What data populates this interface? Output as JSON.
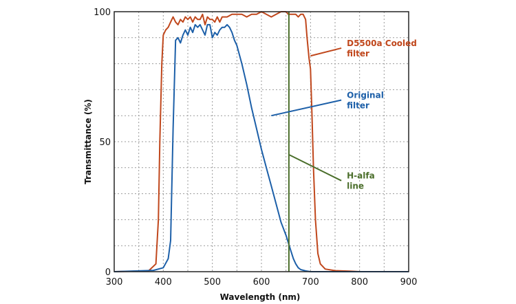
{
  "chart_data": {
    "type": "line",
    "xlabel": "Wavelength (nm)",
    "ylabel": "Transmittance (%)",
    "xlim": [
      300,
      900
    ],
    "ylim": [
      0,
      100
    ],
    "x_ticks": [
      "300",
      "400",
      "500",
      "600",
      "700",
      "800",
      "900"
    ],
    "y_ticks": [
      "0",
      "50",
      "100"
    ],
    "x_grid_step": 50,
    "y_grid_step": 10,
    "grid": true,
    "series": [
      {
        "name": "D5500a Cooled filter",
        "color": "#c0471c",
        "x": [
          300,
          370,
          385,
          390,
          393,
          397,
          400,
          405,
          410,
          415,
          420,
          425,
          430,
          435,
          440,
          445,
          450,
          455,
          460,
          465,
          470,
          475,
          480,
          485,
          490,
          495,
          500,
          505,
          510,
          515,
          520,
          530,
          540,
          550,
          560,
          570,
          580,
          590,
          600,
          610,
          620,
          630,
          640,
          650,
          655,
          660,
          670,
          675,
          680,
          685,
          690,
          693,
          697,
          700,
          703,
          706,
          710,
          715,
          720,
          730,
          750,
          780,
          800,
          900
        ],
        "y": [
          0,
          0.3,
          3,
          20,
          50,
          80,
          91,
          93,
          94,
          96,
          98,
          96,
          95,
          97,
          96,
          98,
          97,
          98,
          96,
          98,
          97,
          97,
          99,
          95,
          98,
          97,
          97,
          96,
          98,
          96,
          98,
          98,
          99,
          99,
          99,
          98,
          99,
          99,
          100,
          99,
          98,
          99,
          100,
          100,
          99,
          99,
          99,
          98,
          99,
          99,
          97,
          90,
          82,
          78,
          60,
          40,
          20,
          7,
          3,
          1,
          0.4,
          0.2,
          0,
          0
        ]
      },
      {
        "name": "Original filter",
        "color": "#1c5fa8",
        "x": [
          300,
          380,
          400,
          410,
          415,
          420,
          425,
          430,
          435,
          440,
          445,
          450,
          455,
          460,
          465,
          470,
          475,
          480,
          485,
          490,
          495,
          500,
          505,
          510,
          515,
          520,
          525,
          530,
          535,
          540,
          545,
          550,
          560,
          570,
          580,
          590,
          600,
          610,
          620,
          630,
          640,
          650,
          660,
          665,
          670,
          675,
          680,
          690,
          700,
          900
        ],
        "y": [
          0,
          0.5,
          1.5,
          5,
          12,
          55,
          89,
          90,
          88,
          91,
          93,
          91,
          94,
          92,
          95,
          94,
          95,
          93,
          91,
          95,
          95,
          90,
          92,
          91,
          93,
          94,
          94,
          95,
          94,
          92,
          89,
          87,
          80,
          72,
          63,
          55,
          47,
          40,
          33,
          26,
          19,
          14,
          8,
          5,
          3,
          1.5,
          0.8,
          0.3,
          0,
          0
        ]
      },
      {
        "name": "H-alfa line",
        "color": "#4a6e2a",
        "x": [
          656,
          656
        ],
        "y": [
          0,
          100
        ]
      }
    ],
    "annotations": [
      {
        "text_lines": [
          "D5500a Cooled",
          "filter"
        ],
        "series": "D5500a Cooled filter",
        "point": [
          700,
          83
        ],
        "label_at": [
          760,
          86
        ]
      },
      {
        "text_lines": [
          "Original",
          "filter"
        ],
        "series": "Original filter",
        "point": [
          620,
          60
        ],
        "label_at": [
          760,
          66
        ]
      },
      {
        "text_lines": [
          "H-alfa",
          "line"
        ],
        "series": "H-alfa line",
        "point": [
          656,
          45
        ],
        "label_at": [
          760,
          35
        ]
      }
    ]
  }
}
